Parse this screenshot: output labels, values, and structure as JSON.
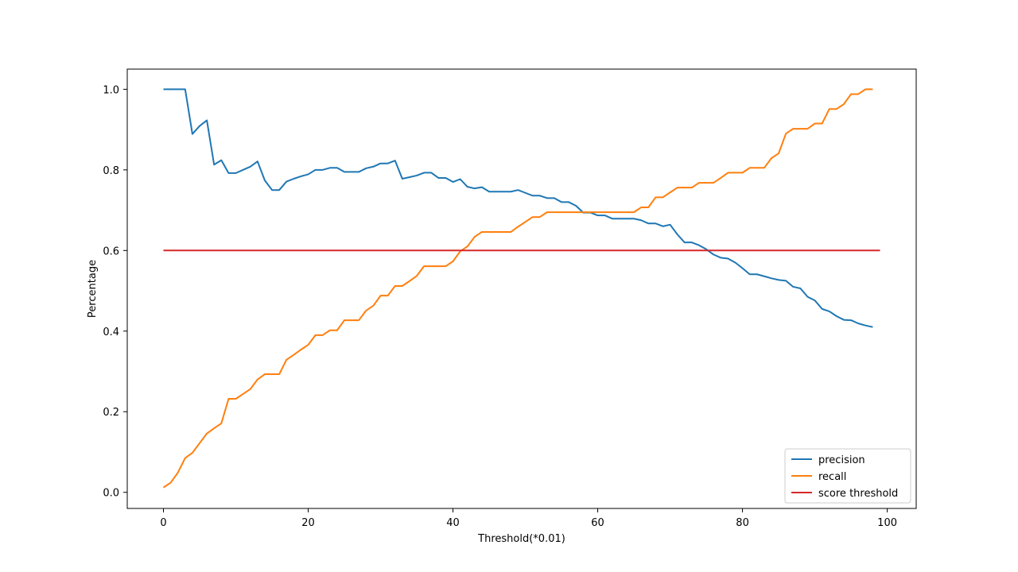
{
  "chart_data": {
    "type": "line",
    "title": "",
    "xlabel": "Threshold(*0.01)",
    "ylabel": "Percentage",
    "xlim": [
      -5,
      104
    ],
    "ylim": [
      -0.04,
      1.05
    ],
    "xticks": [
      0,
      20,
      40,
      60,
      80,
      100
    ],
    "xtick_labels": [
      "0",
      "20",
      "40",
      "60",
      "80",
      "100"
    ],
    "yticks": [
      0.0,
      0.2,
      0.4,
      0.6,
      0.8,
      1.0
    ],
    "ytick_labels": [
      "0.0",
      "0.2",
      "0.4",
      "0.6",
      "0.8",
      "1.0"
    ],
    "grid": false,
    "legend_position": "bottom-right",
    "series": [
      {
        "name": "precision",
        "color": "#1f77b4",
        "x": [
          0,
          1,
          2,
          3,
          4,
          5,
          6,
          7,
          8,
          9,
          10,
          11,
          12,
          13,
          14,
          15,
          16,
          17,
          18,
          19,
          20,
          21,
          22,
          23,
          24,
          25,
          26,
          27,
          28,
          29,
          30,
          31,
          32,
          33,
          34,
          35,
          36,
          37,
          38,
          39,
          40,
          41,
          42,
          43,
          44,
          45,
          46,
          47,
          48,
          49,
          50,
          51,
          52,
          53,
          54,
          55,
          56,
          57,
          58,
          59,
          60,
          61,
          62,
          63,
          64,
          65,
          66,
          67,
          68,
          69,
          70,
          71,
          72,
          73,
          74,
          75,
          76,
          77,
          78,
          79,
          80,
          81,
          82,
          83,
          84,
          85,
          86,
          87,
          88,
          89,
          90,
          91,
          92,
          93,
          94,
          95,
          96,
          97,
          98
        ],
        "y": [
          1.0,
          1.0,
          1.0,
          1.0,
          0.889,
          0.909,
          0.923,
          0.813,
          0.824,
          0.792,
          0.792,
          0.8,
          0.808,
          0.821,
          0.774,
          0.75,
          0.75,
          0.771,
          0.778,
          0.784,
          0.789,
          0.8,
          0.8,
          0.805,
          0.805,
          0.795,
          0.795,
          0.795,
          0.804,
          0.808,
          0.816,
          0.816,
          0.823,
          0.778,
          0.782,
          0.786,
          0.793,
          0.793,
          0.78,
          0.78,
          0.77,
          0.777,
          0.758,
          0.754,
          0.757,
          0.746,
          0.746,
          0.746,
          0.746,
          0.75,
          0.743,
          0.736,
          0.736,
          0.73,
          0.73,
          0.72,
          0.72,
          0.711,
          0.694,
          0.694,
          0.687,
          0.687,
          0.679,
          0.679,
          0.679,
          0.679,
          0.675,
          0.667,
          0.667,
          0.66,
          0.664,
          0.64,
          0.62,
          0.62,
          0.613,
          0.603,
          0.59,
          0.582,
          0.58,
          0.57,
          0.556,
          0.541,
          0.541,
          0.536,
          0.531,
          0.527,
          0.525,
          0.51,
          0.506,
          0.485,
          0.476,
          0.455,
          0.449,
          0.437,
          0.428,
          0.427,
          0.419,
          0.414,
          0.41
        ]
      },
      {
        "name": "recall",
        "color": "#ff7f0e",
        "x": [
          0,
          1,
          2,
          3,
          4,
          5,
          6,
          7,
          8,
          9,
          10,
          11,
          12,
          13,
          14,
          15,
          16,
          17,
          18,
          19,
          20,
          21,
          22,
          23,
          24,
          25,
          26,
          27,
          28,
          29,
          30,
          31,
          32,
          33,
          34,
          35,
          36,
          37,
          38,
          39,
          40,
          41,
          42,
          43,
          44,
          45,
          46,
          47,
          48,
          49,
          50,
          51,
          52,
          53,
          54,
          55,
          56,
          57,
          58,
          59,
          60,
          61,
          62,
          63,
          64,
          65,
          66,
          67,
          68,
          69,
          70,
          71,
          72,
          73,
          74,
          75,
          76,
          77,
          78,
          79,
          80,
          81,
          82,
          83,
          84,
          85,
          86,
          87,
          88,
          89,
          90,
          91,
          92,
          93,
          94,
          95,
          96,
          97,
          98
        ],
        "y": [
          0.012,
          0.024,
          0.049,
          0.085,
          0.098,
          0.122,
          0.146,
          0.159,
          0.171,
          0.232,
          0.232,
          0.244,
          0.256,
          0.28,
          0.293,
          0.293,
          0.293,
          0.329,
          0.341,
          0.354,
          0.366,
          0.39,
          0.39,
          0.402,
          0.402,
          0.427,
          0.427,
          0.427,
          0.451,
          0.463,
          0.488,
          0.488,
          0.512,
          0.512,
          0.524,
          0.537,
          0.561,
          0.561,
          0.561,
          0.561,
          0.573,
          0.598,
          0.61,
          0.634,
          0.646,
          0.646,
          0.646,
          0.646,
          0.646,
          0.659,
          0.671,
          0.683,
          0.683,
          0.695,
          0.695,
          0.695,
          0.695,
          0.695,
          0.695,
          0.695,
          0.695,
          0.695,
          0.695,
          0.695,
          0.695,
          0.695,
          0.707,
          0.707,
          0.732,
          0.732,
          0.744,
          0.756,
          0.756,
          0.756,
          0.768,
          0.768,
          0.768,
          0.78,
          0.793,
          0.793,
          0.793,
          0.805,
          0.805,
          0.805,
          0.829,
          0.841,
          0.89,
          0.902,
          0.902,
          0.902,
          0.915,
          0.915,
          0.951,
          0.951,
          0.963,
          0.988,
          0.988,
          1.0,
          1.0
        ]
      },
      {
        "name": "score threshold",
        "color": "#d62728",
        "x": [
          0,
          99
        ],
        "y": [
          0.6,
          0.6
        ]
      }
    ]
  }
}
